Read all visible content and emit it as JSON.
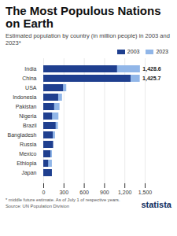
{
  "chart_data": {
    "type": "bar",
    "orientation": "horizontal",
    "title": "The Most Populous Nations on Earth",
    "subtitle": "Estimated population by country (in million people) in 2003 and 2023*",
    "footnote": "* middle future estimate. As of July 1 of respective years.",
    "source": "Source: UN Population Division",
    "logo": "statista",
    "categories": [
      "India",
      "China",
      "USA",
      "Indonesia",
      "Pakistan",
      "Nigeria",
      "Brazil",
      "Bangladesh",
      "Russia",
      "Mexico",
      "Ethiopia",
      "Japan"
    ],
    "series": [
      {
        "name": "2003",
        "color": "#1f3f8f",
        "values": [
          1090,
          1290,
          292,
          220,
          160,
          130,
          182,
          140,
          145,
          105,
          72,
          127
        ]
      },
      {
        "name": "2023",
        "color": "#91b6e8",
        "values": [
          1428.6,
          1425.7,
          340,
          277,
          240,
          224,
          216,
          173,
          144,
          128,
          127,
          123
        ],
        "value_labels": [
          "1,428.6",
          "1,425.7",
          null,
          null,
          null,
          null,
          null,
          null,
          null,
          null,
          null,
          null
        ]
      }
    ],
    "xlim": [
      0,
      1500
    ],
    "xticks": [
      0,
      300,
      600,
      900,
      {
        "value": 1200,
        "label": "1,200"
      },
      {
        "value": 1500,
        "label": "1,500"
      }
    ],
    "grid": true,
    "legend": "top-right",
    "data_labels": true
  }
}
